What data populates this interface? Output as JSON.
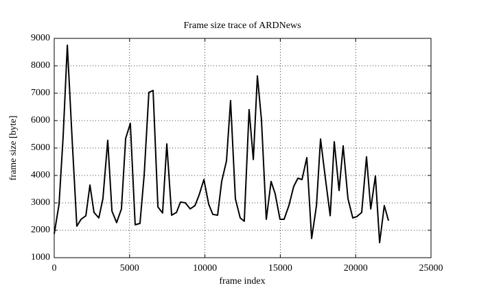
{
  "chart_data": {
    "type": "line",
    "title": "Frame size trace of ARDNews",
    "x_label": "frame index",
    "y_label": "frame size [byte]",
    "series": [
      {
        "color": "#000000",
        "x": [
          0,
          320,
          590,
          870,
          1180,
          1500,
          1780,
          2100,
          2370,
          2640,
          2960,
          3230,
          3550,
          3830,
          4140,
          4460,
          4740,
          5050,
          5370,
          5690,
          5970,
          6280,
          6560,
          6880,
          7190,
          7470,
          7790,
          8110,
          8380,
          8700,
          9020,
          9340,
          9610,
          9930,
          10250,
          10520,
          10840,
          11110,
          11430,
          11700,
          12020,
          12340,
          12610,
          12930,
          13210,
          13480,
          13750,
          14070,
          14390,
          14660,
          14980,
          15250,
          15570,
          15890,
          16170,
          16440,
          16760,
          17080,
          17400,
          17670,
          17990,
          18310,
          18580,
          18900,
          19170,
          19490,
          19810,
          20080,
          20400,
          20720,
          21000,
          21310,
          21590,
          21900,
          22180
        ],
        "values": [
          1870,
          2950,
          5400,
          8750,
          5400,
          2150,
          2400,
          2530,
          3650,
          2650,
          2450,
          3150,
          5280,
          2700,
          2280,
          2780,
          5350,
          5900,
          2200,
          2250,
          4030,
          7030,
          7100,
          2850,
          2630,
          5150,
          2550,
          2650,
          3030,
          3000,
          2780,
          2900,
          3280,
          3850,
          2950,
          2580,
          2550,
          3780,
          4530,
          6730,
          3150,
          2450,
          2330,
          6400,
          4580,
          7630,
          6030,
          2400,
          3780,
          3330,
          2400,
          2400,
          2900,
          3600,
          3900,
          3850,
          4650,
          1700,
          2900,
          5330,
          3900,
          2530,
          5230,
          3450,
          5080,
          3150,
          2450,
          2500,
          2650,
          4680,
          2780,
          3980,
          1550,
          2900,
          2350
        ]
      }
    ],
    "xlim": [
      0,
      25000
    ],
    "xticks": [
      0,
      5000,
      10000,
      15000,
      20000,
      25000
    ],
    "ylim": [
      1000,
      9000
    ],
    "yticks": [
      1000,
      2000,
      3000,
      4000,
      5000,
      6000,
      7000,
      8000,
      9000
    ],
    "grid": true
  }
}
